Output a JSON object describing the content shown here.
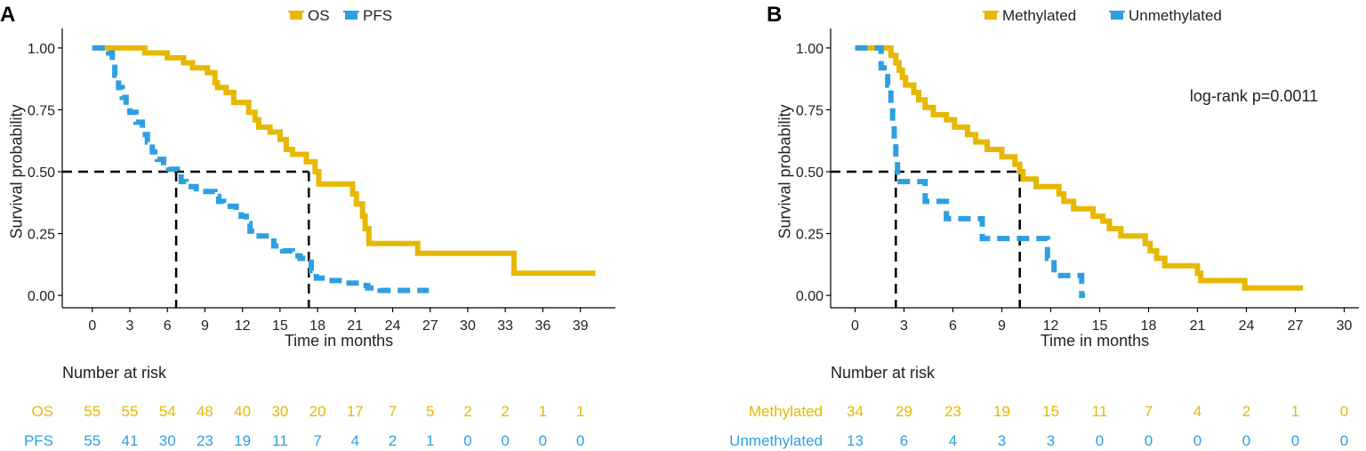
{
  "colors": {
    "os": "#E6B800",
    "pfs": "#2E9FE0",
    "axis": "#000000",
    "text": "#222222"
  },
  "chart_data": [
    {
      "type": "line",
      "panel_label": "A",
      "xlabel": "Time in months",
      "ylabel": "Survival probability",
      "xlim": [
        -2.4,
        41.8
      ],
      "ylim": [
        -0.05,
        1.05
      ],
      "xticks": [
        0,
        3,
        6,
        9,
        12,
        15,
        18,
        21,
        24,
        27,
        30,
        33,
        36,
        39
      ],
      "yticks": [
        0.0,
        0.25,
        0.5,
        0.75,
        1.0
      ],
      "ytick_labels": [
        "0.00",
        "0.25",
        "0.50",
        "0.75",
        "1.00"
      ],
      "medians": [
        6.7,
        17.3
      ],
      "legend": {
        "position": "top-center",
        "entries": [
          "OS",
          "PFS"
        ]
      },
      "series": [
        {
          "name": "OS",
          "color": "#E6B800",
          "dashed": false,
          "points": [
            [
              0,
              1.0
            ],
            [
              4.2,
              1.0
            ],
            [
              4.2,
              0.98
            ],
            [
              6.0,
              0.98
            ],
            [
              6.0,
              0.96
            ],
            [
              7.3,
              0.96
            ],
            [
              7.3,
              0.94
            ],
            [
              8.0,
              0.94
            ],
            [
              8.0,
              0.92
            ],
            [
              9.2,
              0.92
            ],
            [
              9.2,
              0.9
            ],
            [
              9.8,
              0.9
            ],
            [
              9.8,
              0.86
            ],
            [
              10.0,
              0.86
            ],
            [
              10.0,
              0.84
            ],
            [
              10.7,
              0.84
            ],
            [
              10.7,
              0.82
            ],
            [
              11.3,
              0.82
            ],
            [
              11.3,
              0.78
            ],
            [
              12.5,
              0.78
            ],
            [
              12.5,
              0.74
            ],
            [
              13.0,
              0.74
            ],
            [
              13.0,
              0.71
            ],
            [
              13.3,
              0.71
            ],
            [
              13.3,
              0.68
            ],
            [
              14.2,
              0.68
            ],
            [
              14.2,
              0.66
            ],
            [
              15.0,
              0.66
            ],
            [
              15.0,
              0.63
            ],
            [
              15.5,
              0.63
            ],
            [
              15.5,
              0.59
            ],
            [
              16.0,
              0.59
            ],
            [
              16.0,
              0.57
            ],
            [
              17.1,
              0.57
            ],
            [
              17.1,
              0.54
            ],
            [
              17.8,
              0.54
            ],
            [
              17.8,
              0.5
            ],
            [
              18.1,
              0.5
            ],
            [
              18.1,
              0.45
            ],
            [
              20.8,
              0.45
            ],
            [
              20.8,
              0.41
            ],
            [
              21.1,
              0.41
            ],
            [
              21.1,
              0.37
            ],
            [
              21.6,
              0.37
            ],
            [
              21.6,
              0.32
            ],
            [
              21.8,
              0.32
            ],
            [
              21.8,
              0.27
            ],
            [
              22.1,
              0.27
            ],
            [
              22.1,
              0.21
            ],
            [
              26.0,
              0.21
            ],
            [
              26.0,
              0.17
            ],
            [
              33.7,
              0.17
            ],
            [
              33.7,
              0.09
            ],
            [
              40.2,
              0.09
            ]
          ]
        },
        {
          "name": "PFS",
          "color": "#2E9FE0",
          "dashed": true,
          "points": [
            [
              0,
              1.0
            ],
            [
              1.3,
              1.0
            ],
            [
              1.3,
              0.98
            ],
            [
              1.6,
              0.98
            ],
            [
              1.6,
              0.94
            ],
            [
              1.8,
              0.94
            ],
            [
              1.8,
              0.89
            ],
            [
              2.1,
              0.89
            ],
            [
              2.1,
              0.84
            ],
            [
              2.4,
              0.84
            ],
            [
              2.4,
              0.8
            ],
            [
              2.7,
              0.8
            ],
            [
              2.7,
              0.76
            ],
            [
              3.0,
              0.76
            ],
            [
              3.0,
              0.74
            ],
            [
              3.5,
              0.74
            ],
            [
              3.5,
              0.7
            ],
            [
              4.0,
              0.7
            ],
            [
              4.0,
              0.65
            ],
            [
              4.4,
              0.65
            ],
            [
              4.4,
              0.62
            ],
            [
              4.8,
              0.62
            ],
            [
              4.8,
              0.58
            ],
            [
              5.2,
              0.58
            ],
            [
              5.2,
              0.55
            ],
            [
              5.7,
              0.55
            ],
            [
              5.7,
              0.52
            ],
            [
              6.1,
              0.52
            ],
            [
              6.1,
              0.51
            ],
            [
              6.8,
              0.51
            ],
            [
              6.8,
              0.49
            ],
            [
              7.1,
              0.49
            ],
            [
              7.1,
              0.46
            ],
            [
              7.5,
              0.46
            ],
            [
              7.5,
              0.44
            ],
            [
              8.3,
              0.44
            ],
            [
              8.3,
              0.42
            ],
            [
              9.8,
              0.42
            ],
            [
              9.8,
              0.4
            ],
            [
              10.1,
              0.4
            ],
            [
              10.1,
              0.38
            ],
            [
              10.5,
              0.38
            ],
            [
              10.5,
              0.36
            ],
            [
              11.5,
              0.36
            ],
            [
              11.5,
              0.34
            ],
            [
              11.9,
              0.34
            ],
            [
              11.9,
              0.32
            ],
            [
              12.3,
              0.32
            ],
            [
              12.3,
              0.29
            ],
            [
              12.6,
              0.29
            ],
            [
              12.6,
              0.26
            ],
            [
              13.1,
              0.26
            ],
            [
              13.1,
              0.24
            ],
            [
              13.9,
              0.24
            ],
            [
              13.9,
              0.22
            ],
            [
              14.5,
              0.22
            ],
            [
              14.5,
              0.2
            ],
            [
              15.2,
              0.2
            ],
            [
              15.2,
              0.18
            ],
            [
              16.0,
              0.18
            ],
            [
              16.0,
              0.16
            ],
            [
              16.6,
              0.16
            ],
            [
              16.6,
              0.15
            ],
            [
              17.5,
              0.15
            ],
            [
              17.5,
              0.1
            ],
            [
              17.9,
              0.1
            ],
            [
              17.9,
              0.07
            ],
            [
              18.8,
              0.07
            ],
            [
              18.8,
              0.06
            ],
            [
              20.0,
              0.06
            ],
            [
              20.0,
              0.05
            ],
            [
              21.5,
              0.05
            ],
            [
              21.5,
              0.04
            ],
            [
              22.0,
              0.04
            ],
            [
              22.0,
              0.03
            ],
            [
              23.0,
              0.03
            ],
            [
              23.0,
              0.02
            ],
            [
              26.9,
              0.02
            ]
          ]
        }
      ],
      "risk_table": {
        "title": "Number at risk",
        "rows": [
          {
            "label": "OS",
            "color": "#E6B800",
            "values": [
              55,
              55,
              54,
              48,
              40,
              30,
              20,
              17,
              7,
              5,
              2,
              2,
              1,
              1
            ]
          },
          {
            "label": "PFS",
            "color": "#2E9FE0",
            "values": [
              55,
              41,
              30,
              23,
              19,
              11,
              7,
              4,
              2,
              1,
              0,
              0,
              0,
              0
            ]
          }
        ]
      }
    },
    {
      "type": "line",
      "panel_label": "B",
      "xlabel": "Time in months",
      "ylabel": "Survival probability",
      "xlim": [
        -1.5,
        30.9
      ],
      "ylim": [
        -0.05,
        1.05
      ],
      "xticks": [
        0,
        3,
        6,
        9,
        12,
        15,
        18,
        21,
        24,
        27,
        30
      ],
      "yticks": [
        0.0,
        0.25,
        0.5,
        0.75,
        1.0
      ],
      "ytick_labels": [
        "0.00",
        "0.25",
        "0.50",
        "0.75",
        "1.00"
      ],
      "medians": [
        2.5,
        10.1
      ],
      "annotation": "log-rank p=0.0011",
      "legend": {
        "position": "top-center",
        "entries": [
          "Methylated",
          "Unmethylated"
        ]
      },
      "series": [
        {
          "name": "Methylated",
          "color": "#E6B800",
          "dashed": false,
          "points": [
            [
              0,
              1.0
            ],
            [
              2.2,
              1.0
            ],
            [
              2.2,
              0.97
            ],
            [
              2.5,
              0.97
            ],
            [
              2.5,
              0.94
            ],
            [
              2.7,
              0.94
            ],
            [
              2.7,
              0.91
            ],
            [
              2.9,
              0.91
            ],
            [
              2.9,
              0.88
            ],
            [
              3.1,
              0.88
            ],
            [
              3.1,
              0.85
            ],
            [
              3.6,
              0.85
            ],
            [
              3.6,
              0.82
            ],
            [
              3.9,
              0.82
            ],
            [
              3.9,
              0.79
            ],
            [
              4.3,
              0.79
            ],
            [
              4.3,
              0.76
            ],
            [
              4.8,
              0.76
            ],
            [
              4.8,
              0.73
            ],
            [
              5.6,
              0.73
            ],
            [
              5.6,
              0.71
            ],
            [
              6.1,
              0.71
            ],
            [
              6.1,
              0.68
            ],
            [
              6.9,
              0.68
            ],
            [
              6.9,
              0.65
            ],
            [
              7.4,
              0.65
            ],
            [
              7.4,
              0.62
            ],
            [
              8.1,
              0.62
            ],
            [
              8.1,
              0.59
            ],
            [
              9.0,
              0.59
            ],
            [
              9.0,
              0.56
            ],
            [
              9.8,
              0.56
            ],
            [
              9.8,
              0.53
            ],
            [
              10.1,
              0.53
            ],
            [
              10.1,
              0.5
            ],
            [
              10.3,
              0.5
            ],
            [
              10.3,
              0.47
            ],
            [
              11.1,
              0.47
            ],
            [
              11.1,
              0.44
            ],
            [
              12.5,
              0.44
            ],
            [
              12.5,
              0.41
            ],
            [
              12.8,
              0.41
            ],
            [
              12.8,
              0.38
            ],
            [
              13.4,
              0.38
            ],
            [
              13.4,
              0.35
            ],
            [
              14.6,
              0.35
            ],
            [
              14.6,
              0.32
            ],
            [
              15.2,
              0.32
            ],
            [
              15.2,
              0.3
            ],
            [
              15.6,
              0.3
            ],
            [
              15.6,
              0.27
            ],
            [
              16.3,
              0.27
            ],
            [
              16.3,
              0.24
            ],
            [
              17.8,
              0.24
            ],
            [
              17.8,
              0.21
            ],
            [
              18.1,
              0.21
            ],
            [
              18.1,
              0.18
            ],
            [
              18.5,
              0.18
            ],
            [
              18.5,
              0.15
            ],
            [
              19.0,
              0.15
            ],
            [
              19.0,
              0.12
            ],
            [
              21.0,
              0.12
            ],
            [
              21.0,
              0.09
            ],
            [
              21.2,
              0.09
            ],
            [
              21.2,
              0.06
            ],
            [
              23.9,
              0.06
            ],
            [
              23.9,
              0.03
            ],
            [
              27.3,
              0.03
            ],
            [
              27.3,
              0.02
            ]
          ]
        },
        {
          "name": "Unmethylated",
          "color": "#2E9FE0",
          "dashed": true,
          "points": [
            [
              0,
              1.0
            ],
            [
              1.6,
              1.0
            ],
            [
              1.6,
              0.92
            ],
            [
              2.0,
              0.92
            ],
            [
              2.0,
              0.85
            ],
            [
              2.2,
              0.85
            ],
            [
              2.2,
              0.77
            ],
            [
              2.3,
              0.77
            ],
            [
              2.3,
              0.69
            ],
            [
              2.4,
              0.69
            ],
            [
              2.4,
              0.62
            ],
            [
              2.5,
              0.62
            ],
            [
              2.5,
              0.54
            ],
            [
              2.6,
              0.54
            ],
            [
              2.6,
              0.46
            ],
            [
              4.3,
              0.46
            ],
            [
              4.3,
              0.38
            ],
            [
              5.6,
              0.38
            ],
            [
              5.6,
              0.31
            ],
            [
              7.8,
              0.31
            ],
            [
              7.8,
              0.23
            ],
            [
              11.8,
              0.23
            ],
            [
              11.8,
              0.15
            ],
            [
              12.2,
              0.15
            ],
            [
              12.2,
              0.08
            ],
            [
              13.9,
              0.08
            ],
            [
              13.9,
              0.0
            ],
            [
              14.1,
              0.0
            ]
          ]
        }
      ],
      "risk_table": {
        "title": "Number at risk",
        "rows": [
          {
            "label": "Methylated",
            "color": "#E6B800",
            "values": [
              34,
              29,
              23,
              19,
              15,
              11,
              7,
              4,
              2,
              1,
              0
            ]
          },
          {
            "label": "Unmethylated",
            "color": "#2E9FE0",
            "values": [
              13,
              6,
              4,
              3,
              3,
              0,
              0,
              0,
              0,
              0,
              0
            ]
          }
        ]
      }
    }
  ]
}
